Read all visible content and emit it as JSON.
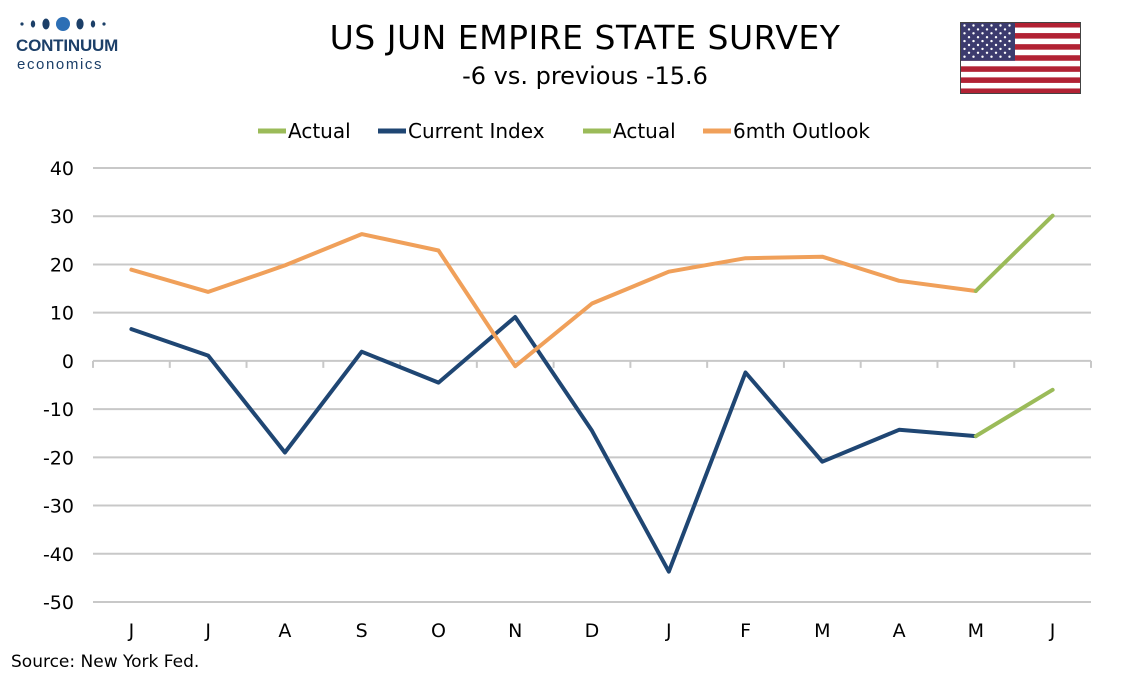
{
  "brand": {
    "name": "CONTINUUM",
    "tagline": "economics"
  },
  "header": {
    "title": "US JUN EMPIRE STATE SURVEY",
    "subtitle": "-6 vs. previous -15.6"
  },
  "flag": {
    "icon": "us-flag-icon"
  },
  "footer": {
    "source": "Source: New York Fed."
  },
  "colors": {
    "current": "#1f4673",
    "outlook": "#f0a05a",
    "actual": "#9bbb59",
    "grid": "#c8c8c8",
    "brand": "#1c3f68"
  },
  "chart_data": {
    "type": "line",
    "title": "US JUN EMPIRE STATE SURVEY",
    "subtitle": "-6 vs. previous -15.6",
    "categories": [
      "J",
      "J",
      "A",
      "S",
      "O",
      "N",
      "D",
      "J",
      "F",
      "M",
      "A",
      "M",
      "J"
    ],
    "ylim": [
      -50,
      40
    ],
    "yticks": [
      40,
      30,
      20,
      10,
      0,
      -10,
      -20,
      -30,
      -40,
      -50
    ],
    "grid": true,
    "legend_position": "top",
    "legend": [
      "Actual",
      "Current Index",
      "Actual",
      "6mth Outlook"
    ],
    "series": [
      {
        "name": "Actual",
        "values": [
          null,
          null,
          null,
          null,
          null,
          null,
          null,
          null,
          null,
          null,
          null,
          -15.6,
          -6
        ],
        "color": "#9bbb59"
      },
      {
        "name": "Current Index",
        "values": [
          6.6,
          1.1,
          -19,
          1.9,
          -4.5,
          9.1,
          -14.5,
          -43.7,
          -2.4,
          -20.9,
          -14.3,
          -15.6,
          null
        ],
        "color": "#1f4673"
      },
      {
        "name": "Actual",
        "values": [
          null,
          null,
          null,
          null,
          null,
          null,
          null,
          null,
          null,
          null,
          null,
          14.5,
          30.1
        ],
        "color": "#9bbb59"
      },
      {
        "name": "6mth Outlook",
        "values": [
          18.9,
          14.3,
          19.8,
          26.3,
          22.9,
          -1.1,
          11.9,
          18.5,
          21.3,
          21.6,
          16.6,
          14.5,
          null
        ],
        "color": "#f0a05a"
      }
    ]
  }
}
